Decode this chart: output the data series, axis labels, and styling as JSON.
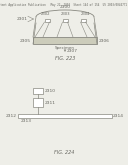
{
  "bg_color": "#eeeee8",
  "line_color": "#888880",
  "text_color": "#666660",
  "header_text": "Patent Application Publication   May 22, 2003  Sheet 144 of 154  US 2003/0044771 A1",
  "fig223_label": "FIG. 223",
  "fig224_label": "FIG. 224",
  "fig223": {
    "top_label": "2300",
    "left_label": "2301",
    "mid_labels": [
      "2302",
      "2303",
      "2304"
    ],
    "box_left_label": "2305",
    "box_right_label": "2306",
    "below_label": "Specimen",
    "arrow_label": "2307"
  },
  "fig224": {
    "top_box_label": "2310",
    "mid_box_label": "2311",
    "bar_left_label": "2312",
    "bar_right_label": "2314",
    "left_connector_label": "2313"
  }
}
